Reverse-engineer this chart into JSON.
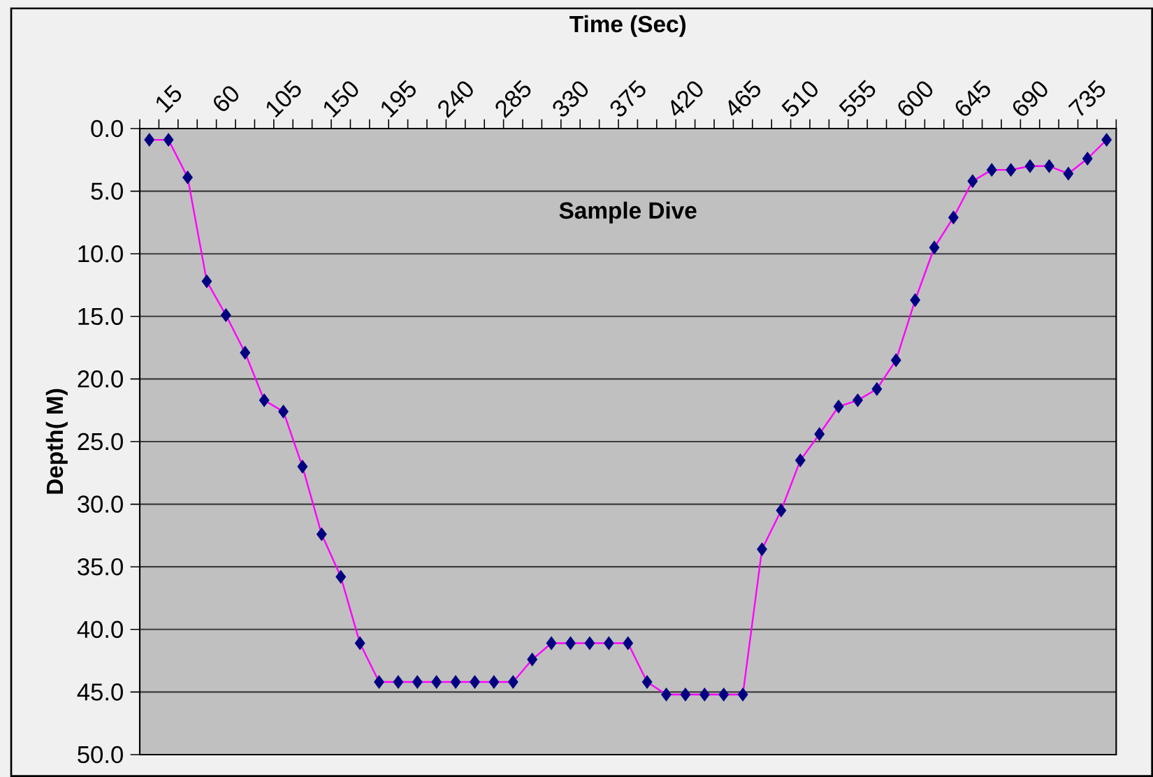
{
  "chart_data": {
    "type": "line",
    "title": "Sample Dive",
    "xlabel": "Time (Sec)",
    "ylabel": "Depth( M)",
    "categories": [
      null,
      "15",
      null,
      null,
      "60",
      null,
      null,
      "105",
      null,
      null,
      "150",
      null,
      null,
      "195",
      null,
      null,
      "240",
      null,
      null,
      "285",
      null,
      null,
      "330",
      null,
      null,
      "375",
      null,
      null,
      "420",
      null,
      null,
      "465",
      null,
      null,
      "510",
      null,
      null,
      "555",
      null,
      null,
      "600",
      null,
      null,
      "645",
      null,
      null,
      "690",
      null,
      null,
      "735",
      null
    ],
    "series": [
      {
        "color": "#ff00ff",
        "colors": [
          "#000080",
          "#000080",
          "#000080",
          "#000080",
          "#000080",
          "#000080",
          "#000080",
          "#000080",
          "#000080",
          "#000080",
          "#000080",
          "#000080",
          "#000080",
          "#000080",
          "#000080",
          "#000080",
          "#000080",
          "#000080",
          "#000080",
          "#000080",
          "#000080",
          "#000080",
          "#000080",
          "#000080",
          "#000080",
          "#000080",
          "#000080",
          "#000080",
          "#000080",
          "#000080",
          "#000080",
          "#000080",
          "#000080",
          "#000080",
          "#000080",
          "#000080",
          "#000080",
          "#000080",
          "#000080",
          "#000080",
          "#000080",
          "#000080",
          "#000080",
          "#000080",
          "#000080",
          "#000080",
          "#000080",
          "#000080",
          "#000080",
          "#000080",
          "#000080"
        ],
        "values": [
          0.9,
          0.9,
          3.9,
          12.2,
          14.9,
          17.9,
          21.7,
          22.6,
          27.0,
          32.4,
          35.8,
          41.1,
          44.2,
          44.2,
          44.2,
          44.2,
          44.2,
          44.2,
          44.2,
          44.2,
          42.4,
          41.1,
          41.1,
          41.1,
          41.1,
          41.1,
          44.2,
          45.2,
          45.2,
          45.2,
          45.2,
          45.2,
          33.6,
          30.5,
          26.5,
          24.4,
          22.2,
          21.7,
          20.8,
          18.5,
          13.7,
          9.5,
          7.1,
          4.2,
          3.3,
          3.3,
          3.0,
          3.0,
          3.6,
          2.4,
          0.9
        ]
      }
    ],
    "ylim": [
      50,
      0
    ],
    "yticks": [
      {
        "value": 0,
        "label": "0.0"
      },
      {
        "value": 5,
        "label": "5.0"
      },
      {
        "value": 10,
        "label": "10.0"
      },
      {
        "value": 15,
        "label": "15.0"
      },
      {
        "value": 20,
        "label": "20.0"
      },
      {
        "value": 25,
        "label": "25.0"
      },
      {
        "value": 30,
        "label": "30.0"
      },
      {
        "value": 35,
        "label": "35.0"
      },
      {
        "value": 40,
        "label": "40.0"
      },
      {
        "value": 45,
        "label": "45.0"
      },
      {
        "value": 50,
        "label": "50.0"
      }
    ],
    "grid": "y",
    "marker": "diamond",
    "line_style": "solid"
  }
}
